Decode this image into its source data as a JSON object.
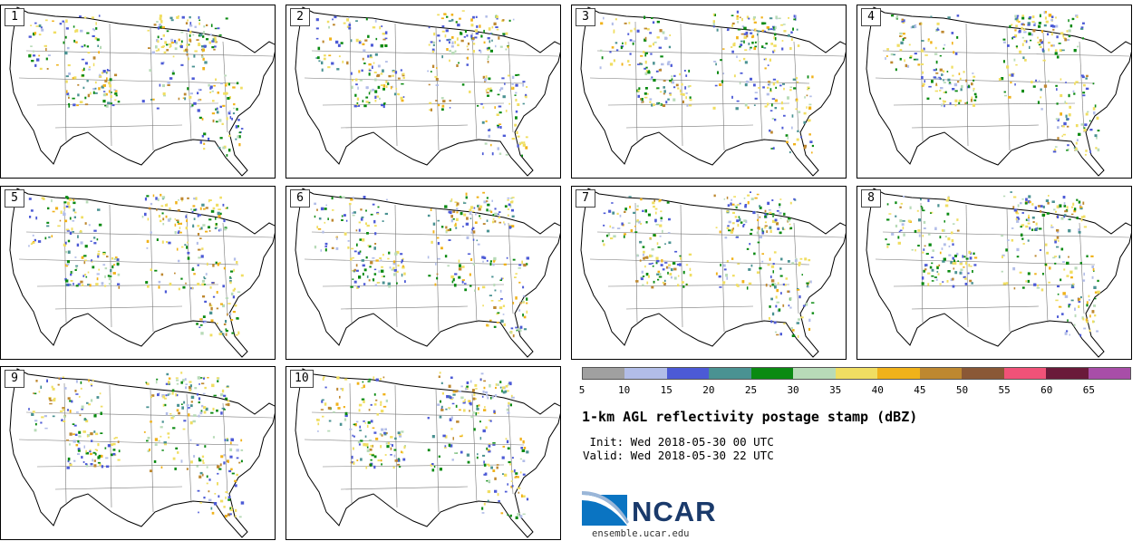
{
  "panels": [
    {
      "label": "1"
    },
    {
      "label": "2"
    },
    {
      "label": "3"
    },
    {
      "label": "4"
    },
    {
      "label": "5"
    },
    {
      "label": "6"
    },
    {
      "label": "7"
    },
    {
      "label": "8"
    },
    {
      "label": "9"
    },
    {
      "label": "10"
    }
  ],
  "colorbar": {
    "colors": [
      "#a0a0a0",
      "#b2bde8",
      "#4c5ad6",
      "#4a9292",
      "#0a8a12",
      "#b8dbb8",
      "#f0de62",
      "#f0b21a",
      "#be8830",
      "#8a5836",
      "#f05278",
      "#6a1a3a",
      "#a84ea8"
    ],
    "ticks": [
      "5",
      "10",
      "15",
      "20",
      "25",
      "30",
      "35",
      "40",
      "45",
      "50",
      "55",
      "60",
      "65"
    ]
  },
  "title": "1-km AGL reflectivity postage stamp (dBZ)",
  "init": " Init: Wed 2018-05-30 00 UTC",
  "valid": "Valid: Wed 2018-05-30 22 UTC",
  "logo": {
    "text": "NCAR",
    "url": "ensemble.ucar.edu"
  }
}
